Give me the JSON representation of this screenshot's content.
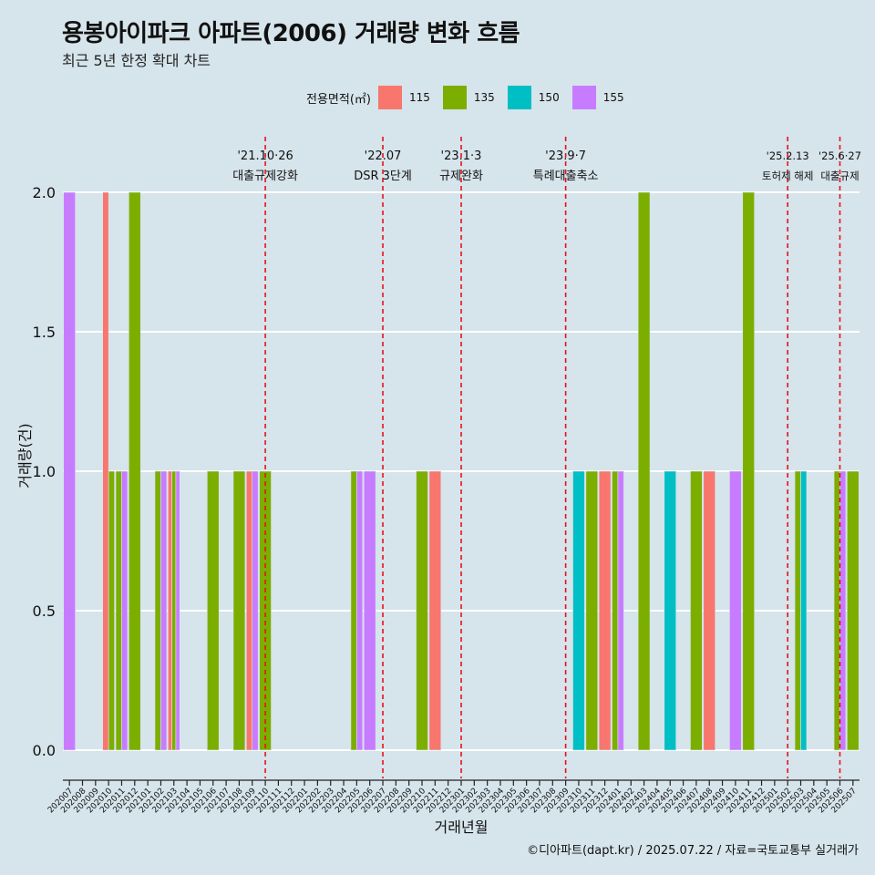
{
  "title": "용봉아이파크 아파트(2006) 거래량 변화 흐름",
  "subtitle": "최근 5년 한정 확대 차트",
  "caption": "©디아파트(dapt.kr) / 2025.07.22 / 자료=국토교통부 실거래가",
  "legend": {
    "title": "전용면적(㎡)",
    "items": [
      {
        "label": "115",
        "color": "#f8766d"
      },
      {
        "label": "135",
        "color": "#7cae00"
      },
      {
        "label": "150",
        "color": "#00bfc4"
      },
      {
        "label": "155",
        "color": "#c77cff"
      }
    ]
  },
  "chart_data": {
    "type": "bar",
    "xlabel": "거래년월",
    "ylabel": "거래량(건)",
    "ylim": [
      0,
      2
    ],
    "yticks": [
      "0.0",
      "0.5",
      "1.0",
      "1.5",
      "2.0"
    ],
    "legend_position": "top",
    "grid": true,
    "categories": [
      "202007",
      "202008",
      "202009",
      "202010",
      "202011",
      "202012",
      "202101",
      "202102",
      "202103",
      "202104",
      "202105",
      "202106",
      "202107",
      "202108",
      "202109",
      "202110",
      "202111",
      "202112",
      "202201",
      "202202",
      "202203",
      "202204",
      "202205",
      "202206",
      "202207",
      "202208",
      "202209",
      "202210",
      "202211",
      "202212",
      "202301",
      "202302",
      "202303",
      "202304",
      "202305",
      "202306",
      "202307",
      "202308",
      "202309",
      "202310",
      "202311",
      "202312",
      "202401",
      "202402",
      "202403",
      "202404",
      "202405",
      "202406",
      "202407",
      "202408",
      "202409",
      "202410",
      "202411",
      "202412",
      "202501",
      "202502",
      "202503",
      "202504",
      "202505",
      "202506",
      "202507"
    ],
    "bars": [
      {
        "month": "202007",
        "size": "155",
        "value": 2
      },
      {
        "month": "202010",
        "size": "115",
        "value": 2
      },
      {
        "month": "202010",
        "size": "135",
        "value": 1
      },
      {
        "month": "202011",
        "size": "135",
        "value": 1
      },
      {
        "month": "202011",
        "size": "155",
        "value": 1
      },
      {
        "month": "202012",
        "size": "135",
        "value": 2
      },
      {
        "month": "202102",
        "size": "135",
        "value": 1
      },
      {
        "month": "202102",
        "size": "155",
        "value": 1
      },
      {
        "month": "202103",
        "size": "115",
        "value": 1
      },
      {
        "month": "202103",
        "size": "135",
        "value": 1
      },
      {
        "month": "202103",
        "size": "155",
        "value": 1
      },
      {
        "month": "202106",
        "size": "135",
        "value": 1
      },
      {
        "month": "202108",
        "size": "135",
        "value": 1
      },
      {
        "month": "202109",
        "size": "115",
        "value": 1
      },
      {
        "month": "202109",
        "size": "155",
        "value": 1
      },
      {
        "month": "202110",
        "size": "135",
        "value": 1
      },
      {
        "month": "202205",
        "size": "135",
        "value": 1
      },
      {
        "month": "202205",
        "size": "155",
        "value": 1
      },
      {
        "month": "202206",
        "size": "155",
        "value": 1
      },
      {
        "month": "202210",
        "size": "135",
        "value": 1
      },
      {
        "month": "202211",
        "size": "115",
        "value": 1
      },
      {
        "month": "202310",
        "size": "150",
        "value": 1
      },
      {
        "month": "202311",
        "size": "135",
        "value": 1
      },
      {
        "month": "202312",
        "size": "115",
        "value": 1
      },
      {
        "month": "202401",
        "size": "135",
        "value": 1
      },
      {
        "month": "202401",
        "size": "155",
        "value": 1
      },
      {
        "month": "202403",
        "size": "135",
        "value": 2
      },
      {
        "month": "202405",
        "size": "150",
        "value": 1
      },
      {
        "month": "202407",
        "size": "135",
        "value": 1
      },
      {
        "month": "202408",
        "size": "115",
        "value": 1
      },
      {
        "month": "202410",
        "size": "155",
        "value": 1
      },
      {
        "month": "202411",
        "size": "135",
        "value": 2
      },
      {
        "month": "202503",
        "size": "135",
        "value": 1
      },
      {
        "month": "202503",
        "size": "150",
        "value": 1
      },
      {
        "month": "202506",
        "size": "135",
        "value": 1
      },
      {
        "month": "202506",
        "size": "155",
        "value": 1
      },
      {
        "month": "202507",
        "size": "135",
        "value": 1
      }
    ],
    "events": [
      {
        "month": "202110",
        "date": "'21.10·26",
        "label": "대출규제강화"
      },
      {
        "month": "202207",
        "date": "'22.07",
        "label": "DSR 3단계"
      },
      {
        "month": "202301",
        "date": "'23.1·3",
        "label": "규제완화"
      },
      {
        "month": "202309",
        "date": "'23.9·7",
        "label": "특례대출축소"
      },
      {
        "month": "202502",
        "date": "'25.2.13",
        "label": "토허제 해제"
      },
      {
        "month": "202506",
        "date": "'25.6·27",
        "label": "대출규제"
      }
    ]
  }
}
